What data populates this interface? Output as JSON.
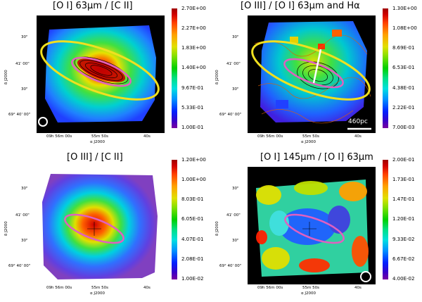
{
  "panels": [
    {
      "title": "[O I] 63μm / [C II]",
      "colorbar": [
        "2.70E+00",
        "2.27E+00",
        "1.83E+00",
        "1.40E+00",
        "9.67E-01",
        "5.33E-01",
        "1.00E-01"
      ],
      "yticks": [
        "30\"",
        "41' 00\"",
        "30\"",
        "69° 40' 00\""
      ],
      "xticks": [
        "09h 56m 00s",
        "55m 50s",
        "40s"
      ],
      "xlabel": "α J2000",
      "ylabel": "δ J2000",
      "beam_shown": true,
      "scalebar": ""
    },
    {
      "title": "[O III] / [O I] 63μm and Hα",
      "colorbar": [
        "1.30E+00",
        "1.08E+00",
        "8.69E-01",
        "6.53E-01",
        "4.38E-01",
        "2.22E-01",
        "7.00E-03"
      ],
      "yticks": [
        "30\"",
        "41' 00\"",
        "30\"",
        "69° 40' 00\""
      ],
      "xticks": [
        "09h 56m 00s",
        "55m 50s",
        "40s"
      ],
      "xlabel": "α J2000",
      "ylabel": "δ J2000",
      "beam_shown": false,
      "scalebar": "460pc"
    },
    {
      "title": "[O III] / [C II]",
      "colorbar": [
        "1.20E+00",
        "1.00E+00",
        "8.03E-01",
        "6.05E-01",
        "4.07E-01",
        "2.08E-01",
        "1.00E-02"
      ],
      "yticks": [
        "30\"",
        "41' 00\"",
        "30\"",
        "69° 40' 00\""
      ],
      "xticks": [
        "09h 56m 00s",
        "55m 50s",
        "40s"
      ],
      "xlabel": "α J2000",
      "ylabel": "δ J2000",
      "beam_shown": false,
      "scalebar": ""
    },
    {
      "title": "[O I] 145μm / [O I] 63μm",
      "colorbar": [
        "2.00E-01",
        "1.73E-01",
        "1.47E-01",
        "1.20E-01",
        "9.33E-02",
        "6.67E-02",
        "4.00E-02"
      ],
      "yticks": [
        "30\"",
        "41' 00\"",
        "30\"",
        "69° 40' 00\""
      ],
      "xticks": [
        "09h 56m 00s",
        "55m 50s",
        "40s"
      ],
      "xlabel": "α J2000",
      "ylabel": "δ J2000",
      "beam_shown": true,
      "scalebar": ""
    }
  ],
  "colors": {
    "ellipse_yellow": "#f0e020",
    "ellipse_pink": "#e060c0",
    "contour_black": "#000000",
    "contour_orange": "#e06000"
  }
}
